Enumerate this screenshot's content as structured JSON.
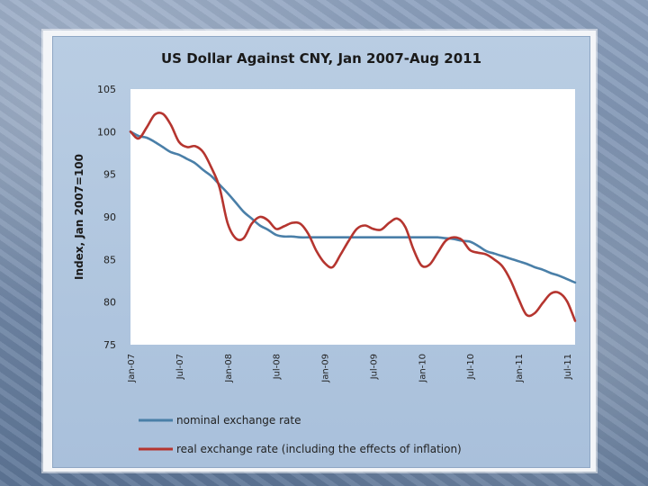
{
  "chart_data": {
    "type": "line",
    "title": "US Dollar Against CNY, Jan 2007-Aug 2011",
    "ylabel": "Index, Jan 2007=100",
    "xlabel": "",
    "ylim": [
      75,
      105
    ],
    "yticks": [
      75,
      80,
      85,
      90,
      95,
      100,
      105
    ],
    "xlim": [
      0,
      55
    ],
    "xticks": [
      {
        "label": "Jan-07",
        "x": 0
      },
      {
        "label": "Jul-07",
        "x": 6
      },
      {
        "label": "Jan-08",
        "x": 12
      },
      {
        "label": "Jul-08",
        "x": 18
      },
      {
        "label": "Jan-09",
        "x": 24
      },
      {
        "label": "Jul-09",
        "x": 30
      },
      {
        "label": "Jan-10",
        "x": 36
      },
      {
        "label": "Jul-10",
        "x": 42
      },
      {
        "label": "Jan-11",
        "x": 48
      },
      {
        "label": "Jul-11",
        "x": 54
      }
    ],
    "grid": "horizontal-none",
    "legend_position": "bottom",
    "series": [
      {
        "name": "nominal exchange rate",
        "color": "#4a7fa8",
        "x": [
          0,
          1,
          2,
          3,
          4,
          5,
          6,
          7,
          8,
          9,
          10,
          11,
          12,
          13,
          14,
          15,
          16,
          17,
          18,
          19,
          20,
          21,
          22,
          23,
          24,
          25,
          26,
          27,
          28,
          29,
          30,
          31,
          32,
          33,
          34,
          35,
          36,
          37,
          38,
          39,
          40,
          41,
          42,
          43,
          44,
          45,
          46,
          47,
          48,
          49,
          50,
          51,
          52,
          53,
          54,
          55
        ],
        "values": [
          100,
          99.5,
          99.3,
          98.8,
          98.2,
          97.6,
          97.3,
          96.8,
          96.3,
          95.5,
          94.8,
          93.8,
          92.8,
          91.7,
          90.6,
          89.8,
          89.0,
          88.5,
          87.9,
          87.7,
          87.7,
          87.6,
          87.6,
          87.6,
          87.6,
          87.6,
          87.6,
          87.6,
          87.6,
          87.6,
          87.6,
          87.6,
          87.6,
          87.6,
          87.6,
          87.6,
          87.6,
          87.6,
          87.6,
          87.5,
          87.4,
          87.2,
          87.1,
          86.6,
          86.0,
          85.7,
          85.4,
          85.1,
          84.8,
          84.5,
          84.1,
          83.8,
          83.4,
          83.1,
          82.7,
          82.3
        ]
      },
      {
        "name": "real exchange rate (including the  effects of inflation)",
        "color": "#b5352f",
        "x": [
          0,
          1,
          2,
          3,
          4,
          5,
          6,
          7,
          8,
          9,
          10,
          11,
          12,
          13,
          14,
          15,
          16,
          17,
          18,
          19,
          20,
          21,
          22,
          23,
          24,
          25,
          26,
          27,
          28,
          29,
          30,
          31,
          32,
          33,
          34,
          35,
          36,
          37,
          38,
          39,
          40,
          41,
          42,
          43,
          44,
          45,
          46,
          47,
          48,
          49,
          50,
          51,
          52,
          53,
          54,
          55
        ],
        "values": [
          100,
          99.2,
          100.5,
          102.0,
          102.1,
          100.8,
          98.8,
          98.2,
          98.3,
          97.6,
          95.8,
          93.5,
          89.3,
          87.5,
          87.5,
          89.2,
          90.0,
          89.6,
          88.6,
          88.9,
          89.3,
          89.2,
          88.0,
          86.0,
          84.6,
          84.1,
          85.6,
          87.2,
          88.6,
          89.0,
          88.6,
          88.5,
          89.3,
          89.8,
          88.8,
          86.2,
          84.3,
          84.4,
          85.8,
          87.2,
          87.6,
          87.3,
          86.1,
          85.8,
          85.6,
          85.0,
          84.2,
          82.6,
          80.4,
          78.5,
          78.7,
          79.9,
          81.0,
          81.1,
          80.1,
          77.8
        ]
      }
    ]
  }
}
